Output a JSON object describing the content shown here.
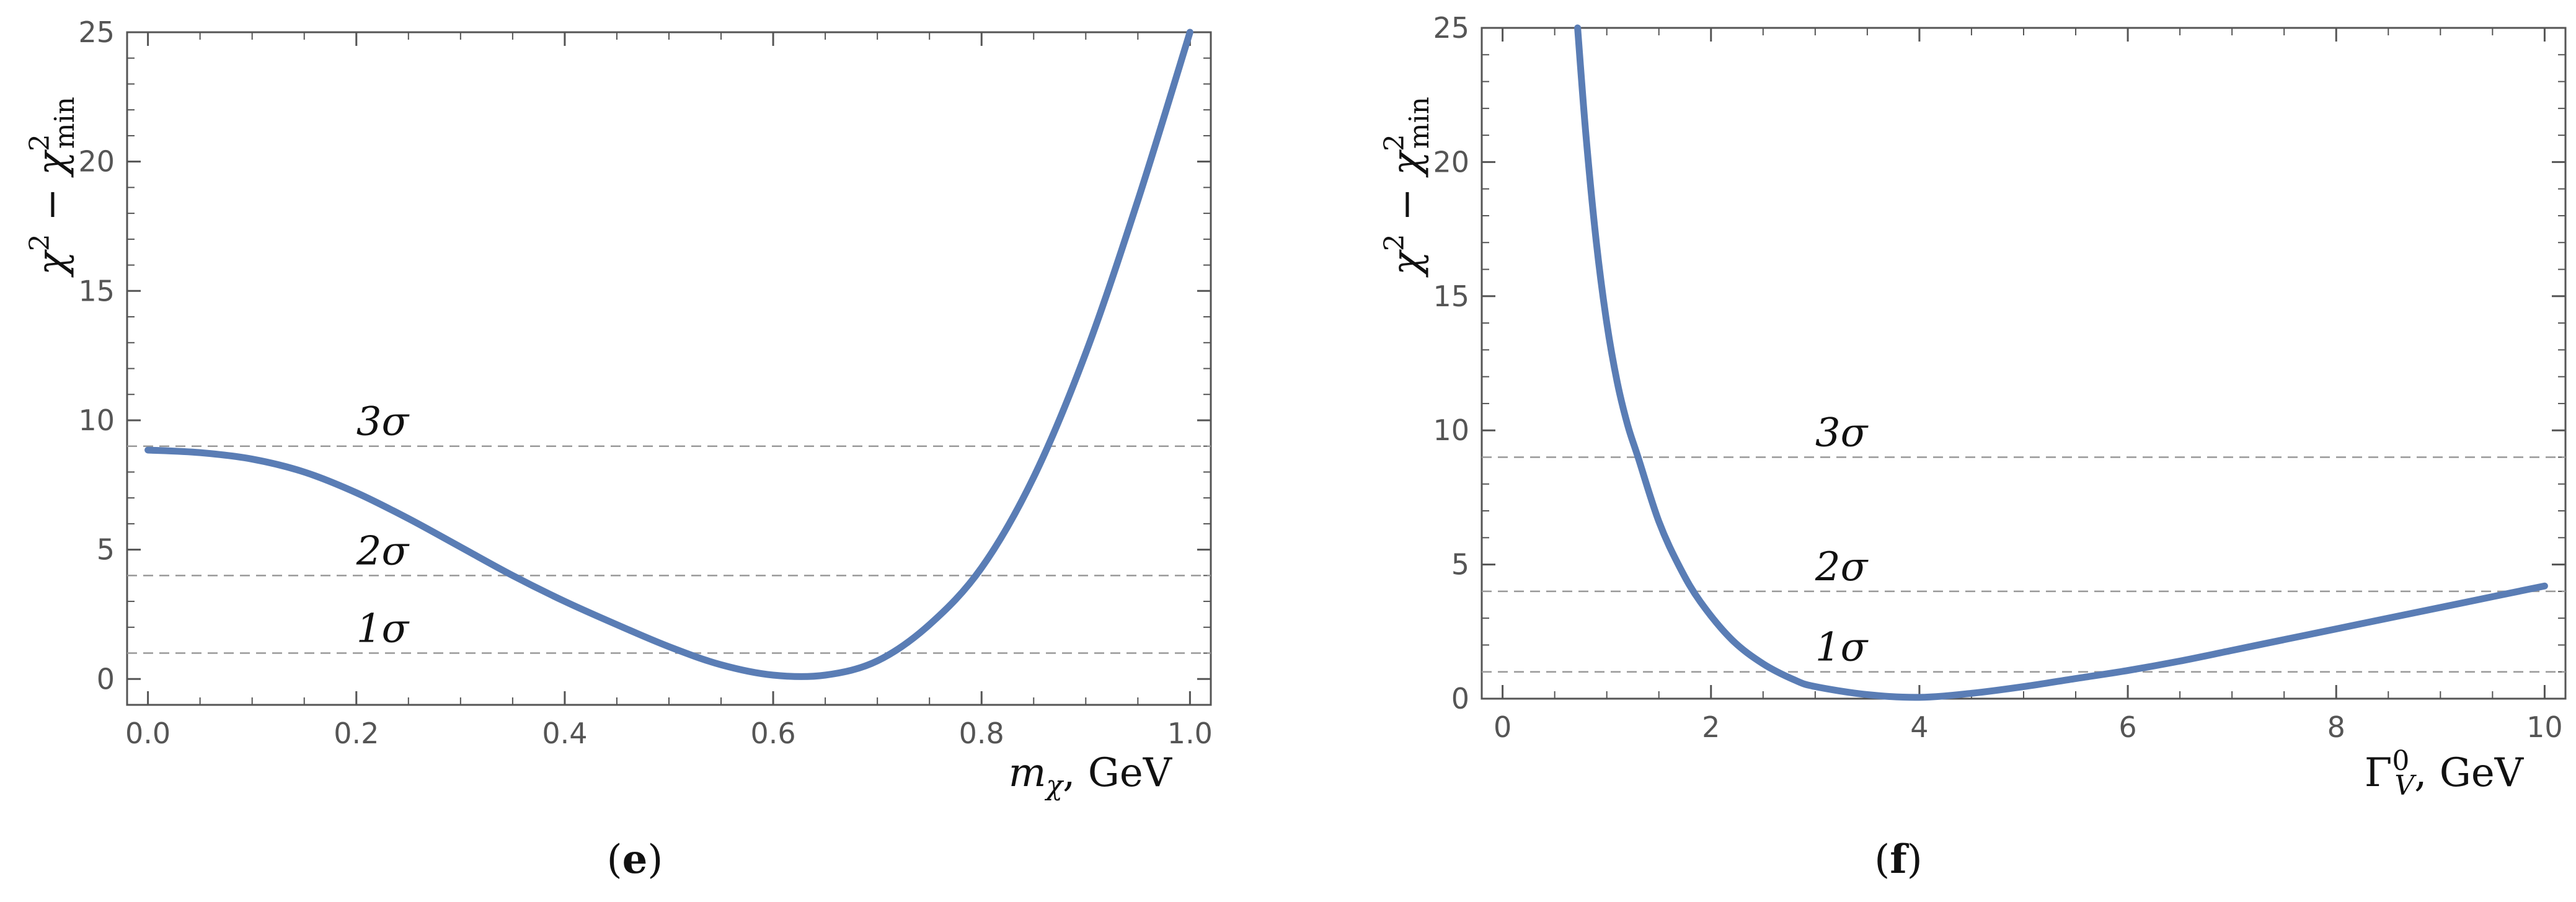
{
  "panels": [
    {
      "label_open": "(",
      "label_letter": "e",
      "label_close": ")"
    },
    {
      "label_open": "(",
      "label_letter": "f",
      "label_close": ")"
    }
  ],
  "colors": {
    "curve": "#5a7db5",
    "reference_line": "#999999",
    "frame": "#555555"
  },
  "chart_data": [
    {
      "type": "line",
      "xlabel": "m_χ, GeV",
      "xlabel_parts": {
        "sym": "m",
        "sub": "χ",
        "unit": ", GeV"
      },
      "ylabel": "χ² − χ²_min",
      "ylabel_parts": {
        "chi": "χ",
        "sup": "2",
        "minus": " − ",
        "chi2": "χ",
        "sup2": "2",
        "sub2": "min"
      },
      "xlim": [
        -0.02,
        1.02
      ],
      "ylim": [
        -1,
        25
      ],
      "x_ticks": [
        "0.0",
        "0.2",
        "0.4",
        "0.6",
        "0.8",
        "1.0"
      ],
      "x_tick_values": [
        0,
        0.2,
        0.4,
        0.6,
        0.8,
        1.0
      ],
      "y_ticks": [
        "0",
        "5",
        "10",
        "15",
        "20",
        "25"
      ],
      "y_tick_values": [
        0,
        5,
        10,
        15,
        20,
        25
      ],
      "reference_lines": [
        {
          "y": 9,
          "label": "3σ",
          "label_x": 0.2
        },
        {
          "y": 4,
          "label": "2σ",
          "label_x": 0.2
        },
        {
          "y": 1,
          "label": "1σ",
          "label_x": 0.2
        }
      ],
      "grid": false,
      "series": [
        {
          "x": [
            0.0,
            0.05,
            0.1,
            0.15,
            0.2,
            0.25,
            0.3,
            0.35,
            0.4,
            0.45,
            0.5,
            0.55,
            0.6,
            0.65,
            0.7,
            0.75,
            0.8,
            0.85,
            0.9,
            0.95,
            1.0
          ],
          "y": [
            8.85,
            8.75,
            8.5,
            8.0,
            7.2,
            6.2,
            5.1,
            4.0,
            3.0,
            2.1,
            1.25,
            0.55,
            0.15,
            0.15,
            0.7,
            2.1,
            4.3,
            7.8,
            12.6,
            18.5,
            25.0
          ]
        }
      ]
    },
    {
      "type": "line",
      "xlabel": "Γ_V^0, GeV",
      "xlabel_parts": {
        "sym": "Γ",
        "sub": "V",
        "sup": "0",
        "unit": ", GeV"
      },
      "ylabel": "χ² − χ²_min",
      "ylabel_parts": {
        "chi": "χ",
        "sup": "2",
        "minus": " − ",
        "chi2": "χ",
        "sup2": "2",
        "sub2": "min"
      },
      "xlim": [
        -0.2,
        10.2
      ],
      "ylim": [
        0,
        25
      ],
      "x_ticks": [
        "0",
        "2",
        "4",
        "6",
        "8",
        "10"
      ],
      "x_tick_values": [
        0,
        2,
        4,
        6,
        8,
        10
      ],
      "y_ticks": [
        "0",
        "5",
        "10",
        "15",
        "20",
        "25"
      ],
      "y_tick_values": [
        0,
        5,
        10,
        15,
        20,
        25
      ],
      "reference_lines": [
        {
          "y": 9,
          "label": "3σ",
          "label_x": 3.0
        },
        {
          "y": 4,
          "label": "2σ",
          "label_x": 3.0
        },
        {
          "y": 1,
          "label": "1σ",
          "label_x": 3.0
        }
      ],
      "grid": false,
      "series": [
        {
          "x": [
            0.72,
            0.8,
            0.9,
            1.0,
            1.1,
            1.2,
            1.3,
            1.5,
            1.7,
            1.9,
            2.2,
            2.5,
            2.8,
            3.0,
            3.5,
            4.0,
            4.5,
            5.0,
            5.5,
            6.0,
            6.5,
            7.0,
            7.5,
            8.0,
            8.5,
            9.0,
            9.5,
            10.0
          ],
          "y": [
            25.0,
            21.0,
            17.0,
            14.0,
            11.8,
            10.2,
            9.0,
            6.6,
            4.9,
            3.6,
            2.2,
            1.3,
            0.7,
            0.45,
            0.15,
            0.05,
            0.2,
            0.45,
            0.75,
            1.05,
            1.4,
            1.8,
            2.2,
            2.6,
            3.0,
            3.4,
            3.8,
            4.2
          ]
        }
      ]
    }
  ]
}
